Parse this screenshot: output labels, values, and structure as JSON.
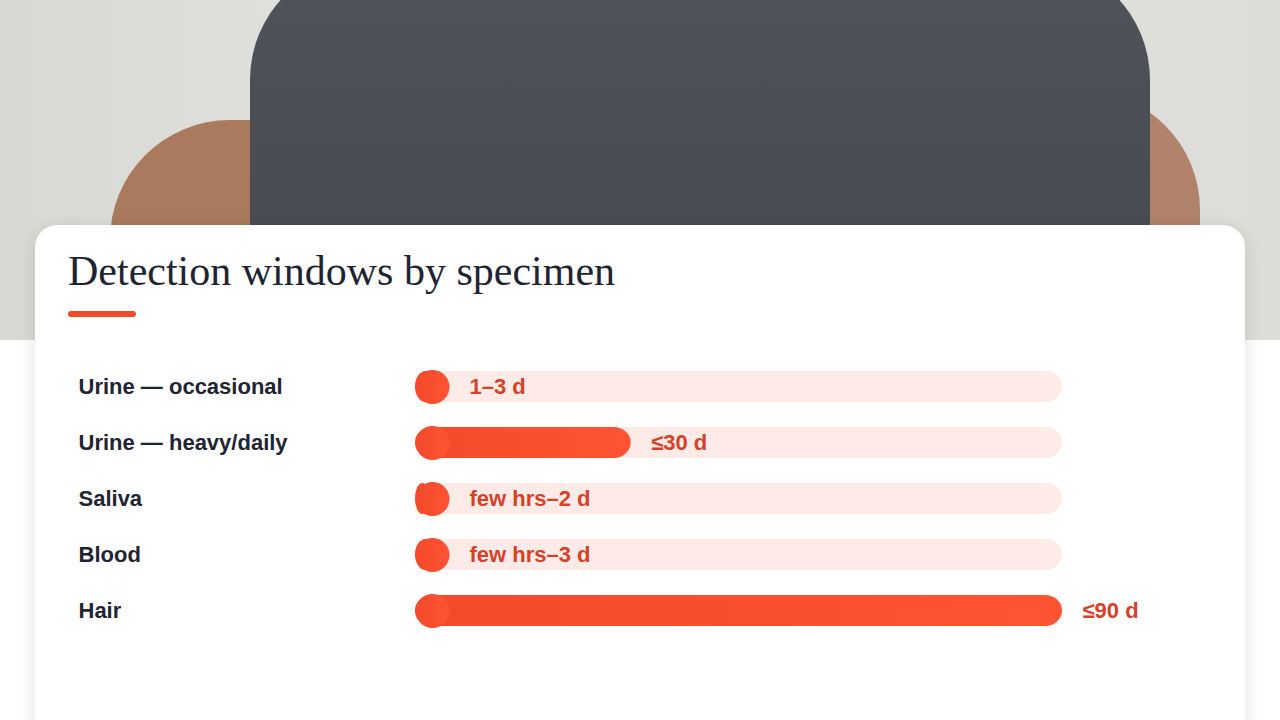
{
  "chart_data": {
    "type": "bar",
    "orientation": "horizontal",
    "title": "Detection windows by specimen",
    "categories": [
      "Urine — occasional",
      "Urine — heavy/daily",
      "Saliva",
      "Blood",
      "Hair"
    ],
    "values": [
      3,
      30,
      2,
      3,
      90
    ],
    "value_labels": [
      "1–3 d",
      "≤30 d",
      "few hrs–2 d",
      "few hrs–3 d",
      "≤90 d"
    ],
    "data_labels": true,
    "color": "#f24a2c",
    "xlim": [
      0,
      90
    ],
    "tick_labels": false,
    "grid": false
  }
}
